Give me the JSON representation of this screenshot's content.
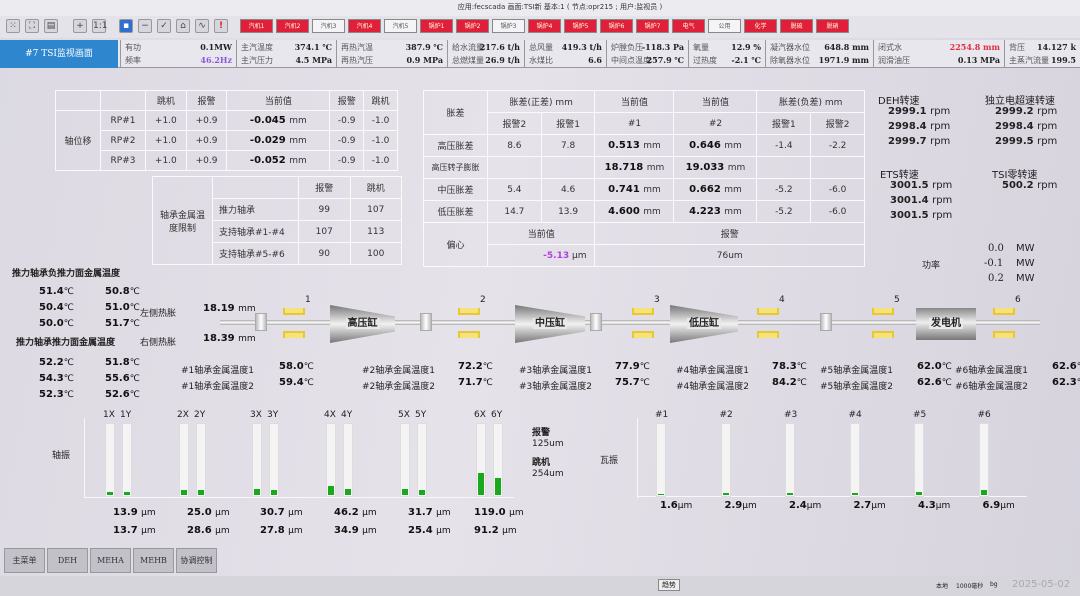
{
  "window": {
    "info": "应用:fecscada  画面:TSI新  基本:1 ( 节点:opr215 ; 用户:监视员 )"
  },
  "toolbar": {
    "icons": [
      "grid-icon",
      "fit-screen-icon",
      "layers-icon",
      "zoom-in-icon",
      "zoom-1to1-icon",
      "save-icon",
      "minus-icon",
      "check-icon",
      "home-icon",
      "trend-icon",
      "alarm-icon"
    ],
    "zoom_label": "1:1",
    "nav": [
      {
        "label": "汽机1",
        "state": "red"
      },
      {
        "label": "汽机2",
        "state": "red"
      },
      {
        "label": "汽机3",
        "state": "white"
      },
      {
        "label": "汽机4",
        "state": "red"
      },
      {
        "label": "汽机5",
        "state": "white"
      },
      {
        "label": "锅炉1",
        "state": "red"
      },
      {
        "label": "锅炉2",
        "state": "red"
      },
      {
        "label": "锅炉3",
        "state": "white"
      },
      {
        "label": "锅炉4",
        "state": "red"
      },
      {
        "label": "锅炉5",
        "state": "red"
      },
      {
        "label": "锅炉6",
        "state": "red"
      },
      {
        "label": "锅炉7",
        "state": "red"
      },
      {
        "label": "电气",
        "state": "red"
      },
      {
        "label": "公用",
        "state": "white"
      },
      {
        "label": "化学",
        "state": "red"
      },
      {
        "label": "脱硫",
        "state": "red"
      },
      {
        "label": "脱硝",
        "state": "red"
      }
    ]
  },
  "header": {
    "title": "#7 TSI监视画面",
    "cells": [
      [
        {
          "label": "有功",
          "value": "0.1MW"
        },
        {
          "label": "频率",
          "value": "46.2Hz",
          "color": "#8a5ad8"
        }
      ],
      [
        {
          "label": "主汽温度",
          "value": "374.1 ℃"
        },
        {
          "label": "主汽压力",
          "value": "4.5 MPa"
        }
      ],
      [
        {
          "label": "再热汽温",
          "value": "387.9 ℃"
        },
        {
          "label": "再热汽压",
          "value": "0.9 MPa"
        }
      ],
      [
        {
          "label": "给水流量",
          "value": "217.6 t/h"
        },
        {
          "label": "总燃煤量",
          "value": "26.9 t/h"
        }
      ],
      [
        {
          "label": "总风量",
          "value": "419.3 t/h"
        },
        {
          "label": "水煤比",
          "value": "6.6"
        }
      ],
      [
        {
          "label": "炉膛负压",
          "value": "-118.3 Pa"
        },
        {
          "label": "中间点温度",
          "value": "257.9 ℃"
        }
      ],
      [
        {
          "label": "氧量",
          "value": "12.9 %"
        },
        {
          "label": "过热度",
          "value": "-2.1 ℃"
        }
      ],
      [
        {
          "label": "凝汽器水位",
          "value": "648.8 mm"
        },
        {
          "label": "除氧器水位",
          "value": "1971.9 mm"
        }
      ],
      [
        {
          "label": "闭式水",
          "value": "2254.8 mm",
          "color": "#e03040"
        },
        {
          "label": "润滑油压",
          "value": "0.13 MPa"
        }
      ],
      [
        {
          "label": "背压",
          "value": "14.127 k"
        },
        {
          "label": "主蒸汽流量",
          "value": "199.5"
        }
      ]
    ]
  },
  "axial": {
    "label": "轴位移",
    "headers": [
      "跳机",
      "报警",
      "当前值",
      "报警",
      "跳机"
    ],
    "unit": "mm",
    "rows": [
      {
        "name": "RP#1",
        "trip_pos": "+1.0",
        "alarm_pos": "+0.9",
        "value": "-0.045",
        "alarm_neg": "-0.9",
        "trip_neg": "-1.0"
      },
      {
        "name": "RP#2",
        "trip_pos": "+1.0",
        "alarm_pos": "+0.9",
        "value": "-0.029",
        "alarm_neg": "-0.9",
        "trip_neg": "-1.0"
      },
      {
        "name": "RP#3",
        "trip_pos": "+1.0",
        "alarm_pos": "+0.9",
        "value": "-0.052",
        "alarm_neg": "-0.9",
        "trip_neg": "-1.0"
      }
    ]
  },
  "bearing_limits": {
    "label": "轴承金属温度限制",
    "headers": [
      "报警",
      "跳机"
    ],
    "rows": [
      {
        "name": "推力轴承",
        "alarm": "99",
        "trip": "107"
      },
      {
        "name": "支持轴承#1-#4",
        "alarm": "107",
        "trip": "113"
      },
      {
        "name": "支持轴承#5-#6",
        "alarm": "90",
        "trip": "100"
      }
    ]
  },
  "expansion": {
    "label": "胀差",
    "pos_header": "胀差(正差) mm",
    "neg_header": "胀差(负差) mm",
    "cur_header": "当前值",
    "sub": [
      "报警2",
      "报警1",
      "#1",
      "#2",
      "报警1",
      "报警2"
    ],
    "unit": "mm",
    "rows": [
      {
        "name": "高压胀差",
        "a2": "8.6",
        "a1": "7.8",
        "v1": "0.513",
        "v2": "0.646",
        "n1": "-1.4",
        "n2": "-2.2"
      },
      {
        "name": "高压转子膨胀",
        "a2": "",
        "a1": "",
        "v1": "18.718",
        "v2": "19.033",
        "n1": "",
        "n2": ""
      },
      {
        "name": "中压胀差",
        "a2": "5.4",
        "a1": "4.6",
        "v1": "0.741",
        "v2": "0.662",
        "n1": "-5.2",
        "n2": "-6.0"
      },
      {
        "name": "低压胀差",
        "a2": "14.7",
        "a1": "13.9",
        "v1": "4.600",
        "v2": "4.223",
        "n1": "-5.2",
        "n2": "-6.0"
      }
    ],
    "ecc": {
      "label": "偏心",
      "cur_header": "当前值",
      "alarm_header": "报警",
      "value": "-5.13",
      "unit": "μm",
      "alarm": "76um"
    }
  },
  "speeds": {
    "deh": {
      "label": "DEH转速",
      "values": [
        "2999.1",
        "2998.4",
        "2999.7"
      ]
    },
    "indep": {
      "label": "独立电超速转速",
      "values": [
        "2999.2",
        "2998.4",
        "2999.5"
      ]
    },
    "ets": {
      "label": "ETS转速",
      "values": [
        "3001.5",
        "3001.4",
        "3001.5"
      ]
    },
    "tsi_zero": {
      "label": "TSI零转速",
      "values": [
        "500.2"
      ]
    },
    "unit": "rpm"
  },
  "power": {
    "label": "功率",
    "values": [
      "0.0",
      "-0.1",
      "0.2"
    ],
    "unit": "MW"
  },
  "thrust": {
    "neg_label": "推力轴承负推力面金属温度",
    "neg": [
      [
        "51.4",
        "50.8"
      ],
      [
        "50.4",
        "51.0"
      ],
      [
        "50.0",
        "51.7"
      ]
    ],
    "pos_label": "推力轴承推力面金属温度",
    "pos": [
      [
        "52.2",
        "51.8"
      ],
      [
        "54.3",
        "55.6"
      ],
      [
        "52.3",
        "52.6"
      ]
    ],
    "unit": "℃"
  },
  "thermal": {
    "left_label": "左侧热胀",
    "left": "18.19",
    "right_label": "右侧热胀",
    "right": "18.39",
    "unit": "mm"
  },
  "rotor": {
    "cylinders": [
      "高压缸",
      "中压缸",
      "低压缸",
      "发电机"
    ],
    "bearing_numbers": [
      "1",
      "2",
      "3",
      "4",
      "5",
      "6"
    ]
  },
  "bearing_temps": [
    {
      "l1": "#1轴承金属温度1",
      "v1": "58.0",
      "l2": "#1轴承金属温度2",
      "v2": "59.4"
    },
    {
      "l1": "#2轴承金属温度1",
      "v1": "72.2",
      "l2": "#2轴承金属温度2",
      "v2": "71.7"
    },
    {
      "l1": "#3轴承金属温度1",
      "v1": "77.9",
      "l2": "#3轴承金属温度2",
      "v2": "75.7"
    },
    {
      "l1": "#4轴承金属温度1",
      "v1": "78.3",
      "l2": "#4轴承金属温度2",
      "v2": "84.2"
    },
    {
      "l1": "#5轴承金属温度1",
      "v1": "62.0",
      "l2": "#5轴承金属温度2",
      "v2": "62.6"
    },
    {
      "l1": "#6轴承金属温度1",
      "v1": "62.6",
      "l2": "#6轴承金属温度2",
      "v2": "62.3"
    }
  ],
  "shaft_vib": {
    "label": "轴振",
    "alarm_label": "报警",
    "alarm": "125um",
    "trip_label": "跳机",
    "trip": "254um",
    "unit": "μm",
    "pairs": [
      {
        "x_label": "1X",
        "y_label": "1Y",
        "x": 13.9,
        "y": 13.7
      },
      {
        "x_label": "2X",
        "y_label": "2Y",
        "x": 25.0,
        "y": 28.6
      },
      {
        "x_label": "3X",
        "y_label": "3Y",
        "x": 30.7,
        "y": 27.8
      },
      {
        "x_label": "4X",
        "y_label": "4Y",
        "x": 46.2,
        "y": 34.9
      },
      {
        "x_label": "5X",
        "y_label": "5Y",
        "x": 31.7,
        "y": 25.4
      },
      {
        "x_label": "6X",
        "y_label": "6Y",
        "x": 119.0,
        "y": 91.2
      }
    ],
    "bar_color": "#1ca81c"
  },
  "bearing_vib": {
    "label": "瓦振",
    "unit": "μm",
    "bars": [
      {
        "label": "#1",
        "value": 1.6
      },
      {
        "label": "#2",
        "value": 2.9
      },
      {
        "label": "#3",
        "value": 2.4
      },
      {
        "label": "#4",
        "value": 2.7
      },
      {
        "label": "#5",
        "value": 4.3
      },
      {
        "label": "#6",
        "value": 6.9
      }
    ]
  },
  "bottom_nav": [
    "主菜单",
    "DEH",
    "MEHA",
    "MEHB",
    "协调控制"
  ],
  "statusbar": {
    "trend": "趋势",
    "mode": "本地",
    "interval": "1000毫秒",
    "bg": "bg",
    "date": "2025-05-02"
  }
}
